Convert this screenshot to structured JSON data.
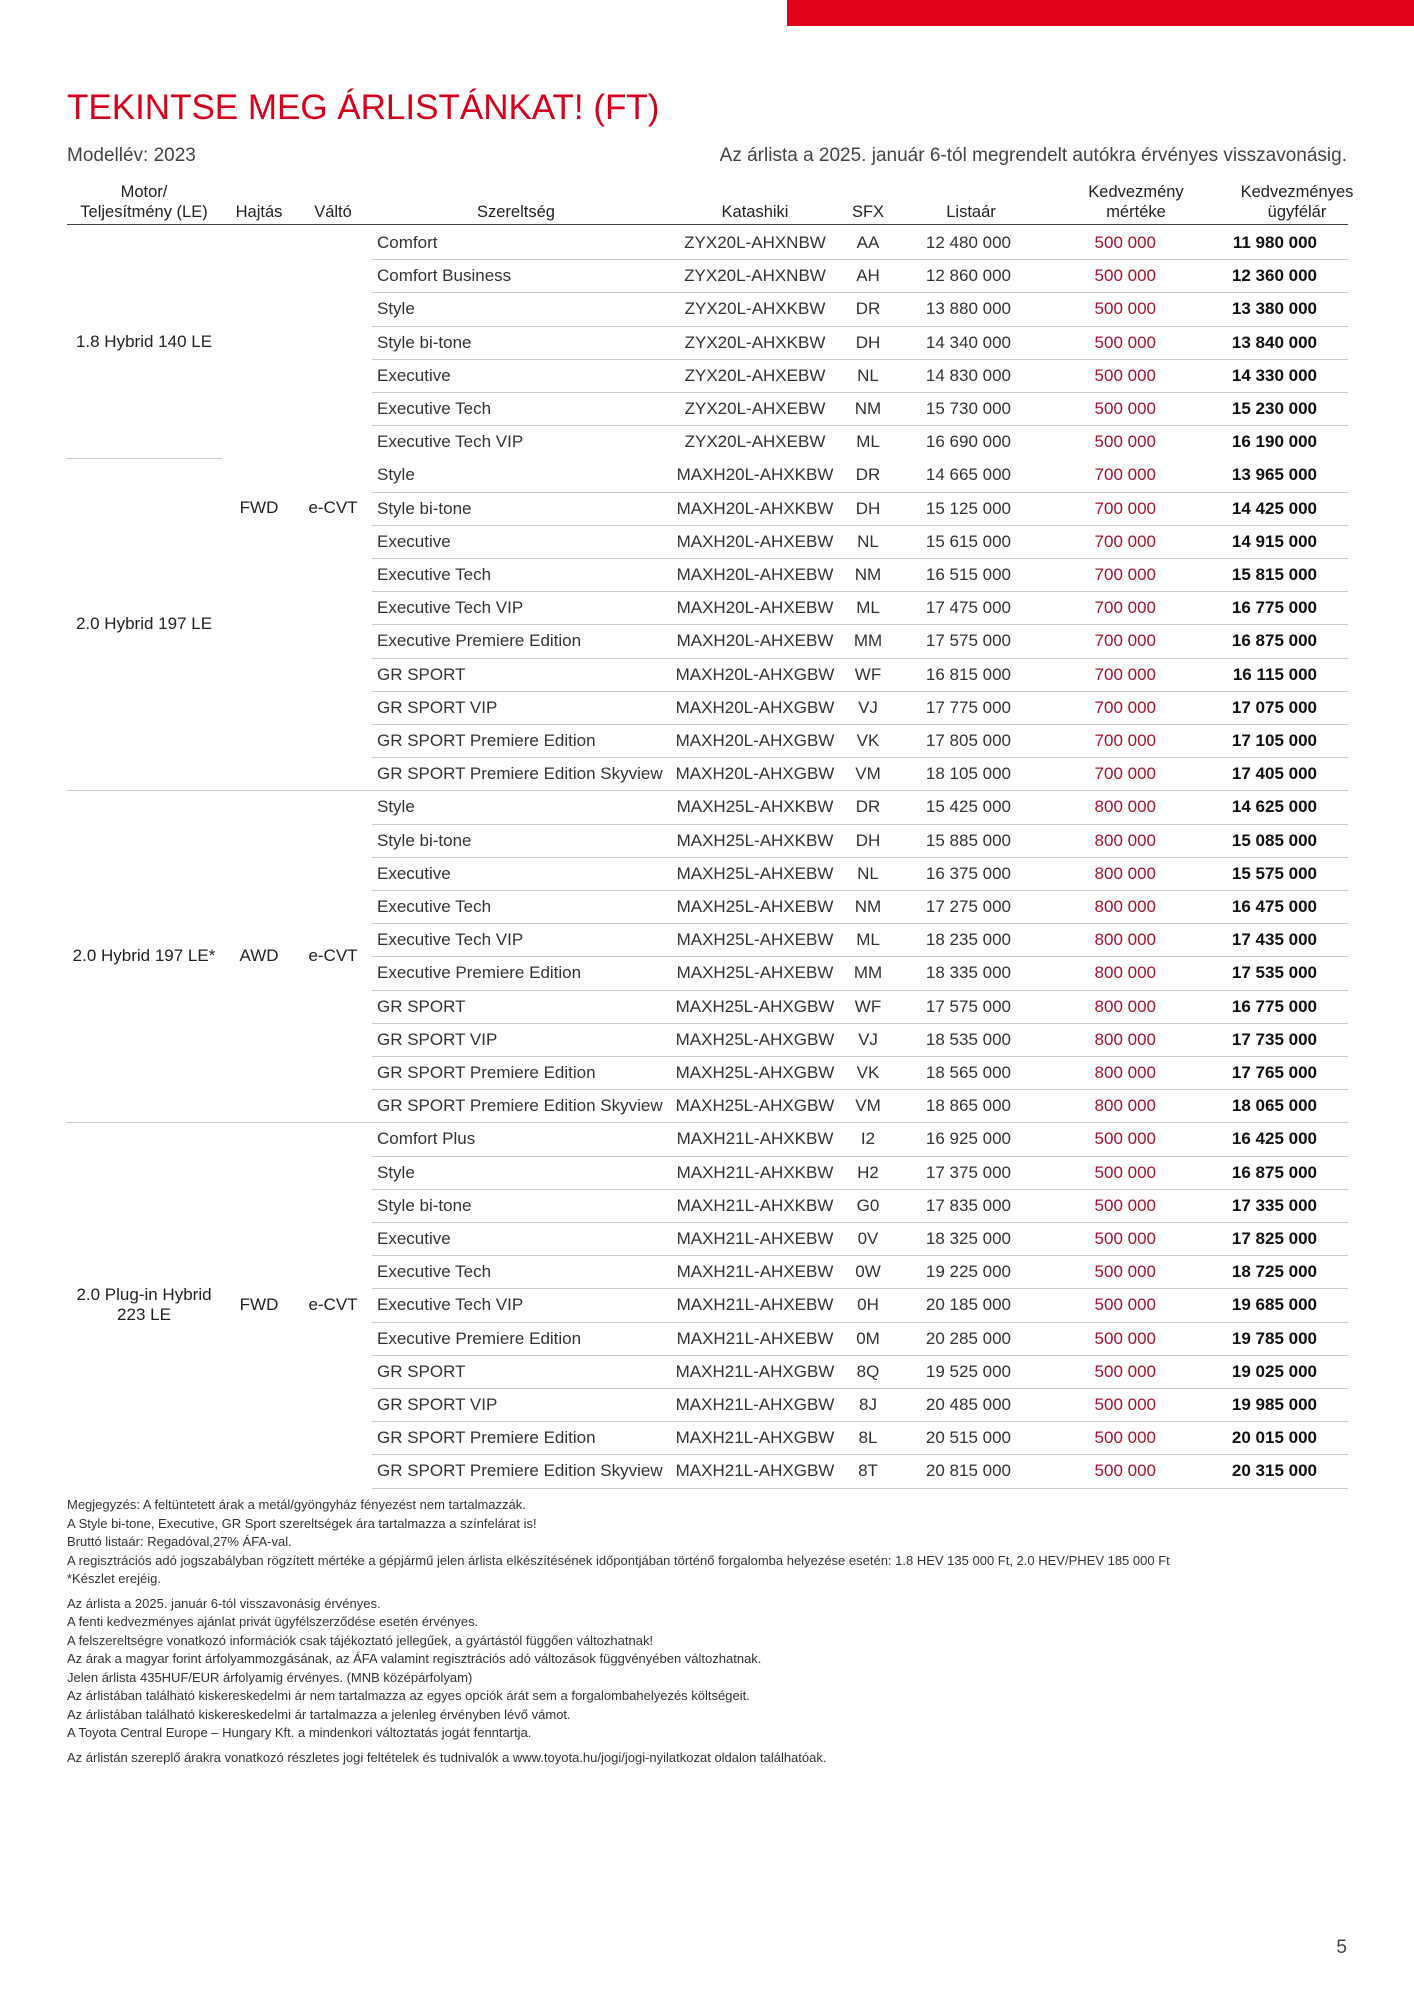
{
  "header": {
    "title": "TEKINTSE MEG ÁRLISTÁNKAT! (FT)",
    "model_year": "Modellév: 2023",
    "validity": "Az árlista a 2025. január 6-tól megrendelt autókra érvényes visszavonásig."
  },
  "table": {
    "columns": [
      "Motor/\nTeljesítmény (LE)",
      "Hajtás",
      "Váltó",
      "Szereltség",
      "Katashiki",
      "SFX",
      "Listaár",
      "Kedvezmény\nmértéke",
      "Kedvezményes\nügyfélár"
    ],
    "sections": [
      {
        "drive": "FWD",
        "transmission": "e-CVT",
        "engines": [
          {
            "motor": "1.8 Hybrid 140 LE",
            "rows": [
              [
                "Comfort",
                "ZYX20L-AHXNBW",
                "AA",
                "12 480 000",
                "500 000",
                "11 980 000"
              ],
              [
                "Comfort Business",
                "ZYX20L-AHXNBW",
                "AH",
                "12 860 000",
                "500 000",
                "12 360 000"
              ],
              [
                "Style",
                "ZYX20L-AHXKBW",
                "DR",
                "13 880 000",
                "500 000",
                "13 380 000"
              ],
              [
                "Style bi-tone",
                "ZYX20L-AHXKBW",
                "DH",
                "14 340 000",
                "500 000",
                "13 840 000"
              ],
              [
                "Executive",
                "ZYX20L-AHXEBW",
                "NL",
                "14 830 000",
                "500 000",
                "14 330 000"
              ],
              [
                "Executive Tech",
                "ZYX20L-AHXEBW",
                "NM",
                "15 730 000",
                "500 000",
                "15 230 000"
              ],
              [
                "Executive Tech VIP",
                "ZYX20L-AHXEBW",
                "ML",
                "16 690 000",
                "500 000",
                "16 190 000"
              ]
            ]
          },
          {
            "motor": "2.0 Hybrid 197 LE",
            "rows": [
              [
                "Style",
                "MAXH20L-AHXKBW",
                "DR",
                "14 665 000",
                "700 000",
                "13 965 000"
              ],
              [
                "Style bi-tone",
                "MAXH20L-AHXKBW",
                "DH",
                "15 125 000",
                "700 000",
                "14 425 000"
              ],
              [
                "Executive",
                "MAXH20L-AHXEBW",
                "NL",
                "15 615 000",
                "700 000",
                "14 915 000"
              ],
              [
                "Executive Tech",
                "MAXH20L-AHXEBW",
                "NM",
                "16 515 000",
                "700 000",
                "15 815 000"
              ],
              [
                "Executive Tech VIP",
                "MAXH20L-AHXEBW",
                "ML",
                "17 475 000",
                "700 000",
                "16 775 000"
              ],
              [
                "Executive Premiere Edition",
                "MAXH20L-AHXEBW",
                "MM",
                "17 575 000",
                "700 000",
                "16 875 000"
              ],
              [
                "GR SPORT",
                "MAXH20L-AHXGBW",
                "WF",
                "16 815 000",
                "700 000",
                "16 115 000"
              ],
              [
                "GR SPORT VIP",
                "MAXH20L-AHXGBW",
                "VJ",
                "17 775 000",
                "700 000",
                "17 075 000"
              ],
              [
                "GR SPORT Premiere Edition",
                "MAXH20L-AHXGBW",
                "VK",
                "17 805 000",
                "700 000",
                "17 105 000"
              ],
              [
                "GR SPORT Premiere Edition Skyview",
                "MAXH20L-AHXGBW",
                "VM",
                "18 105 000",
                "700 000",
                "17 405 000"
              ]
            ]
          }
        ]
      },
      {
        "drive": "AWD",
        "transmission": "e-CVT",
        "engines": [
          {
            "motor": "2.0 Hybrid 197 LE*",
            "rows": [
              [
                "Style",
                "MAXH25L-AHXKBW",
                "DR",
                "15 425 000",
                "800 000",
                "14 625 000"
              ],
              [
                "Style bi-tone",
                "MAXH25L-AHXKBW",
                "DH",
                "15 885 000",
                "800 000",
                "15 085 000"
              ],
              [
                "Executive",
                "MAXH25L-AHXEBW",
                "NL",
                "16 375 000",
                "800 000",
                "15 575 000"
              ],
              [
                "Executive Tech",
                "MAXH25L-AHXEBW",
                "NM",
                "17 275 000",
                "800 000",
                "16 475 000"
              ],
              [
                "Executive Tech VIP",
                "MAXH25L-AHXEBW",
                "ML",
                "18 235 000",
                "800 000",
                "17 435 000"
              ],
              [
                "Executive Premiere Edition",
                "MAXH25L-AHXEBW",
                "MM",
                "18 335 000",
                "800 000",
                "17 535 000"
              ],
              [
                "GR SPORT",
                "MAXH25L-AHXGBW",
                "WF",
                "17 575 000",
                "800 000",
                "16 775 000"
              ],
              [
                "GR SPORT VIP",
                "MAXH25L-AHXGBW",
                "VJ",
                "18 535 000",
                "800 000",
                "17 735 000"
              ],
              [
                "GR SPORT Premiere Edition",
                "MAXH25L-AHXGBW",
                "VK",
                "18 565 000",
                "800 000",
                "17 765 000"
              ],
              [
                "GR SPORT Premiere Edition Skyview",
                "MAXH25L-AHXGBW",
                "VM",
                "18 865 000",
                "800 000",
                "18 065 000"
              ]
            ]
          }
        ]
      },
      {
        "drive": "FWD",
        "transmission": "e-CVT",
        "engines": [
          {
            "motor": "2.0 Plug-in Hybrid\n223 LE",
            "rows": [
              [
                "Comfort Plus",
                "MAXH21L-AHXKBW",
                "I2",
                "16 925 000",
                "500 000",
                "16 425 000"
              ],
              [
                "Style",
                "MAXH21L-AHXKBW",
                "H2",
                "17 375 000",
                "500 000",
                "16 875 000"
              ],
              [
                "Style bi-tone",
                "MAXH21L-AHXKBW",
                "G0",
                "17 835 000",
                "500 000",
                "17 335 000"
              ],
              [
                "Executive",
                "MAXH21L-AHXEBW",
                "0V",
                "18 325 000",
                "500 000",
                "17 825 000"
              ],
              [
                "Executive Tech",
                "MAXH21L-AHXEBW",
                "0W",
                "19 225 000",
                "500 000",
                "18 725 000"
              ],
              [
                "Executive Tech VIP",
                "MAXH21L-AHXEBW",
                "0H",
                "20 185 000",
                "500 000",
                "19 685 000"
              ],
              [
                "Executive Premiere Edition",
                "MAXH21L-AHXEBW",
                "0M",
                "20 285 000",
                "500 000",
                "19 785 000"
              ],
              [
                "GR SPORT",
                "MAXH21L-AHXGBW",
                "8Q",
                "19 525 000",
                "500 000",
                "19 025 000"
              ],
              [
                "GR SPORT VIP",
                "MAXH21L-AHXGBW",
                "8J",
                "20 485 000",
                "500 000",
                "19 985 000"
              ],
              [
                "GR SPORT Premiere Edition",
                "MAXH21L-AHXGBW",
                "8L",
                "20 515 000",
                "500 000",
                "20 015 000"
              ],
              [
                "GR SPORT Premiere Edition Skyview",
                "MAXH21L-AHXGBW",
                "8T",
                "20 815 000",
                "500 000",
                "20 315 000"
              ]
            ]
          }
        ]
      }
    ]
  },
  "notes": [
    [
      "Megjegyzés: A feltüntetett árak a metál/gyöngyház fényezést nem tartalmazzák.",
      "A Style bi-tone, Executive, GR Sport szereltségek ára tartalmazza a színfelárat is!",
      "Bruttó listaár: Regadóval,27% ÁFA-val.",
      "A regisztrációs adó jogszabályban rögzített mértéke a gépjármű jelen árlista elkészítésének időpontjában történő forgalomba helyezése esetén: 1.8 HEV 135 000 Ft, 2.0 HEV/PHEV 185 000 Ft",
      "*Készlet erejéig."
    ],
    [
      "Az árlista a 2025. január 6-tól visszavonásig érvényes.",
      "A fenti kedvezményes ajánlat privát ügyfélszerződése esetén érvényes.",
      "A felszereltségre vonatkozó információk csak tájékoztató jellegűek, a gyártástól függően változhatnak!",
      "Az árak a magyar forint árfolyammozgásának, az ÁFA valamint regisztrációs adó változások függvényében változhatnak.",
      "Jelen árlista 435HUF/EUR árfolyamig érvényes. (MNB középárfolyam)",
      "Az árlistában található kiskereskedelmi ár nem tartalmazza az egyes opciók árát sem a forgalombahelyezés költségeit.",
      "Az árlistában található kiskereskedelmi ár tartalmazza a jelenleg érvényben lévő vámot.",
      "A Toyota Central Europe – Hungary Kft. a mindenkori változtatás jogát fenntartja."
    ],
    [
      "Az árlistán szereplő árakra vonatkozó részletes jogi feltételek és tudnivalók a www.toyota.hu/jogi/jogi-nyilatkozat oldalon találhatóak."
    ]
  ],
  "page_number": "5"
}
